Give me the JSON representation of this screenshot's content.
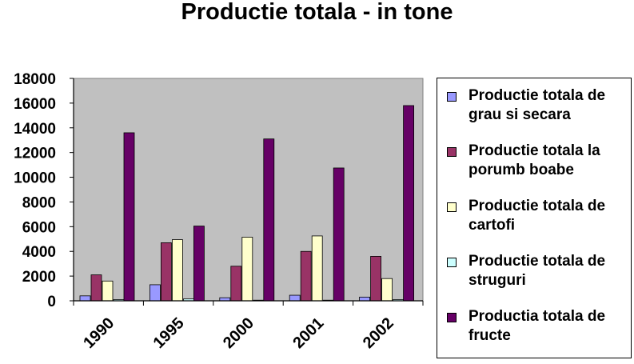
{
  "chart_data": {
    "type": "bar",
    "title": "Productie totala  - in tone",
    "categories": [
      "1990",
      "1995",
      "2000",
      "2001",
      "2002"
    ],
    "ylim": [
      0,
      18000
    ],
    "yticks": [
      0,
      2000,
      4000,
      6000,
      8000,
      10000,
      12000,
      14000,
      16000,
      18000
    ],
    "grid": false,
    "legend_position": "right",
    "plot_background": "#c0c0c0",
    "series": [
      {
        "name": "Productie totala de grau si secara",
        "color": "#9999ff",
        "values": [
          400,
          1300,
          250,
          450,
          300
        ]
      },
      {
        "name": "Productie totala la porumb boabe",
        "color": "#993366",
        "values": [
          2100,
          4700,
          2800,
          4000,
          3600
        ]
      },
      {
        "name": "Productie totala de cartofi",
        "color": "#ffffcc",
        "values": [
          1600,
          4950,
          5150,
          5250,
          1800
        ]
      },
      {
        "name": "Productie totala de struguri",
        "color": "#ccffff",
        "values": [
          100,
          150,
          50,
          50,
          100
        ]
      },
      {
        "name": "Productia totala de fructe",
        "color": "#660066",
        "values": [
          13600,
          6050,
          13100,
          10750,
          15800
        ]
      }
    ]
  }
}
